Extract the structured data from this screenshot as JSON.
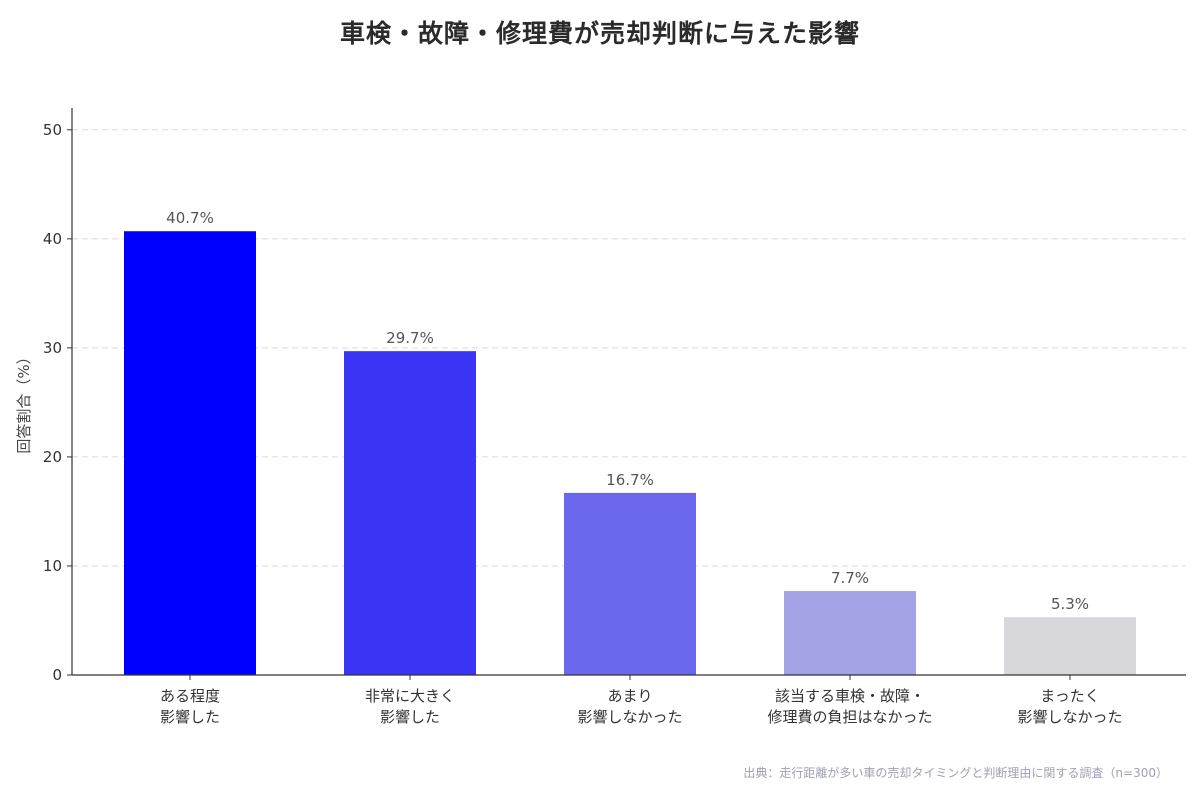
{
  "chart_data": {
    "type": "bar",
    "title": "車検・故障・修理費が売却判断に与えた影響",
    "ylabel": "回答割合（%）",
    "xlabel": "",
    "ylim": [
      0,
      52
    ],
    "yticks": [
      0,
      10,
      20,
      30,
      40,
      50
    ],
    "grid": true,
    "categories": [
      [
        "ある程度",
        "影響した"
      ],
      [
        "非常に大きく",
        "影響した"
      ],
      [
        "あまり",
        "影響しなかった"
      ],
      [
        "該当する車検・故障・",
        "修理費の負担はなかった"
      ],
      [
        "まったく",
        "影響しなかった"
      ]
    ],
    "values": [
      40.7,
      29.7,
      16.7,
      7.7,
      5.3
    ],
    "value_labels": [
      "40.7%",
      "29.7%",
      "16.7%",
      "7.7%",
      "5.3%"
    ],
    "colors": [
      "#0000ff",
      "#3a35f5",
      "#6b68ee",
      "#a3a3e5",
      "#d8d8dc"
    ],
    "source": "出典：走行距離が多い車の売却タイミングと判断理由に関する調査（n=300）"
  }
}
